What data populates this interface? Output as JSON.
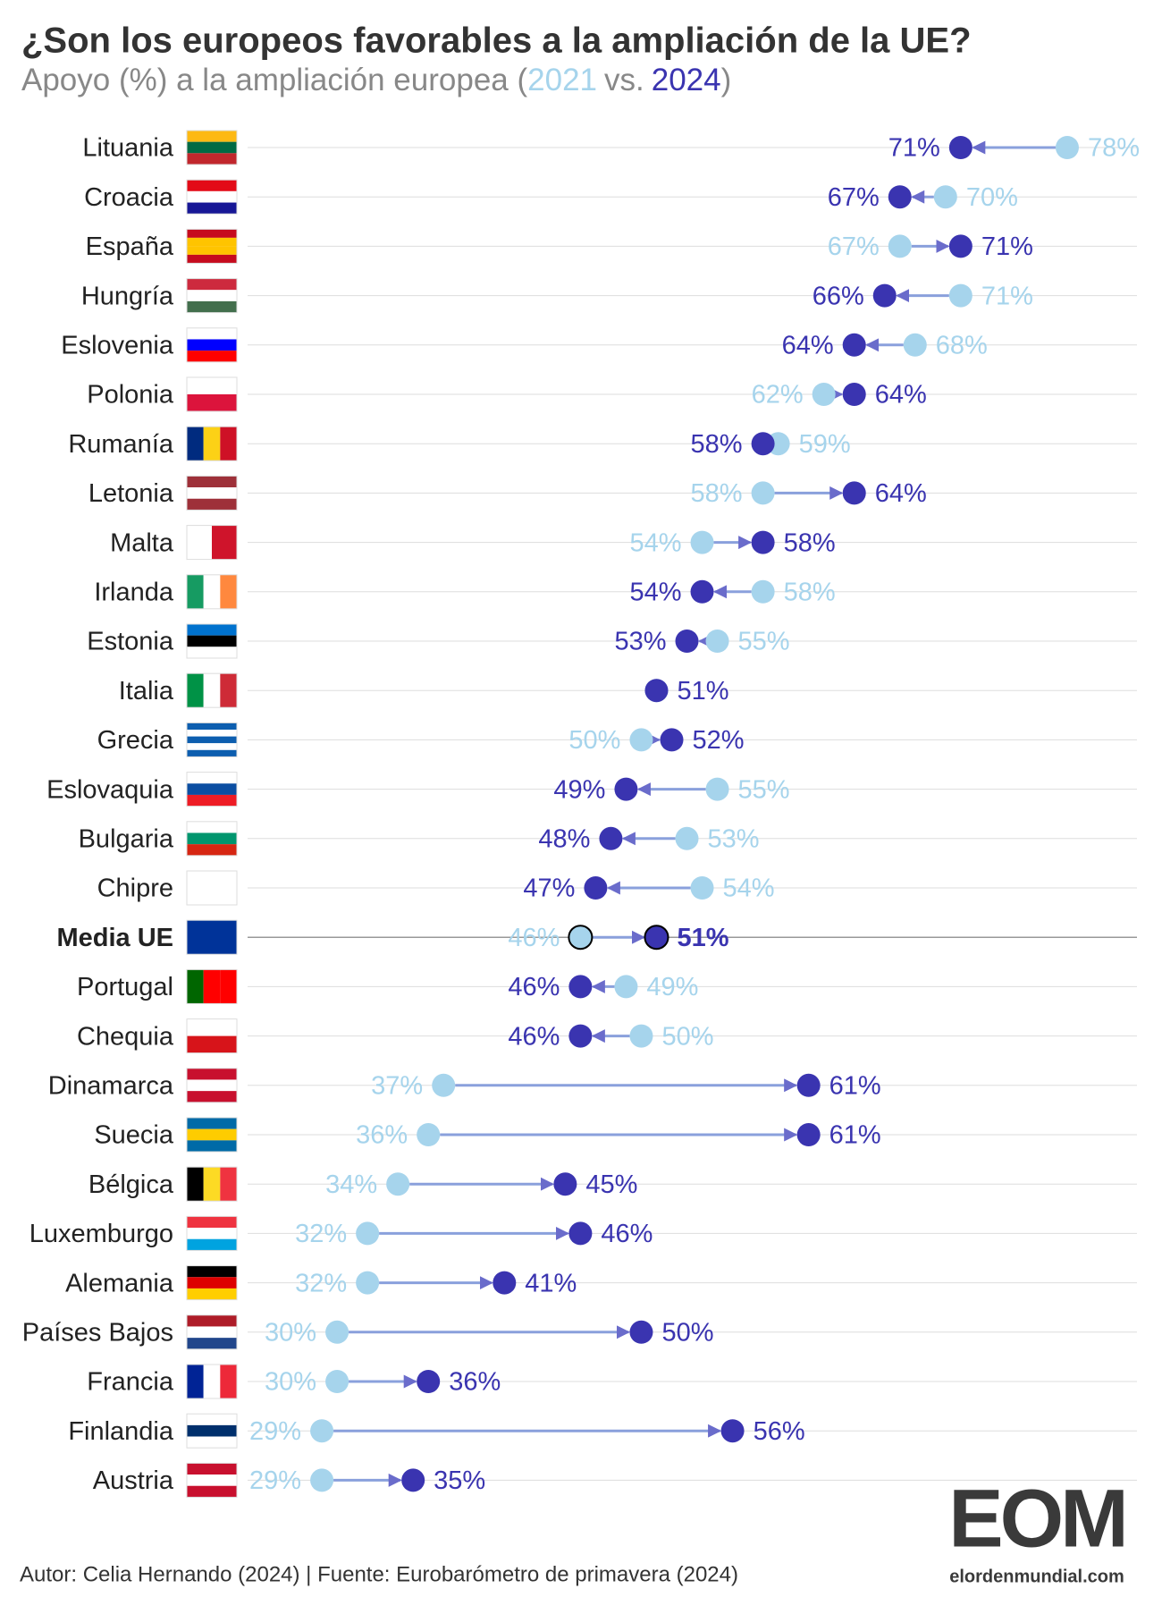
{
  "chart_data": {
    "type": "dumbbell",
    "title": "¿Son los europeos favorables a la ampliación de la UE?",
    "subtitle": [
      "Apoyo (%) a la ampliación europea (",
      "vs.",
      ")"
    ],
    "categories": [
      "Lituania",
      "Croacia",
      "España",
      "Hungría",
      "Eslovenia",
      "Polonia",
      "Rumanía",
      "Letonia",
      "Malta",
      "Irlanda",
      "Estonia",
      "Italia",
      "Grecia",
      "Eslovaquia",
      "Bulgaria",
      "Chipre",
      "Media UE",
      "Portugal",
      "Chequia",
      "Dinamarca",
      "Suecia",
      "Bélgica",
      "Luxemburgo",
      "Alemania",
      "Países Bajos",
      "Francia",
      "Finlandia",
      "Austria"
    ],
    "highlight": 16,
    "series": [
      {
        "name": "2021",
        "color": "#a6d4ec",
        "values": [
          78,
          70,
          67,
          71,
          68,
          62,
          59,
          58,
          54,
          58,
          55,
          51,
          50,
          55,
          53,
          54,
          46,
          49,
          50,
          37,
          36,
          34,
          32,
          32,
          30,
          30,
          29,
          29
        ],
        "value_labels": [
          "78%",
          "70%",
          "67%",
          "71%",
          "68%",
          "62%",
          "59%",
          "58%",
          "54%",
          "58%",
          "55%",
          null,
          "50%",
          "55%",
          "53%",
          "54%",
          "46%",
          "49%",
          "50%",
          "37%",
          "36%",
          "34%",
          "32%",
          "32%",
          "30%",
          "30%",
          "29%",
          "29%"
        ]
      },
      {
        "name": "2024",
        "color": "#3a34b0",
        "values": [
          71,
          67,
          71,
          66,
          64,
          64,
          58,
          64,
          58,
          54,
          53,
          51,
          52,
          49,
          48,
          47,
          51,
          46,
          46,
          61,
          61,
          45,
          46,
          41,
          50,
          36,
          56,
          35
        ],
        "value_labels": [
          "71%",
          "67%",
          "71%",
          "66%",
          "64%",
          "64%",
          "58%",
          "64%",
          "58%",
          "54%",
          "53%",
          "51%",
          "52%",
          "49%",
          "48%",
          "47%",
          "51%",
          "46%",
          "46%",
          "61%",
          "61%",
          "45%",
          "46%",
          "41%",
          "50%",
          "36%",
          "56%",
          "35%"
        ]
      }
    ],
    "xlim": [
      25,
      80
    ],
    "source": "Autor: Celia Hernando (2024) | Fuente: Eurobarómetro de primavera (2024)",
    "logo": {
      "mark": "EOM",
      "site": "elordenmundial.com"
    }
  }
}
